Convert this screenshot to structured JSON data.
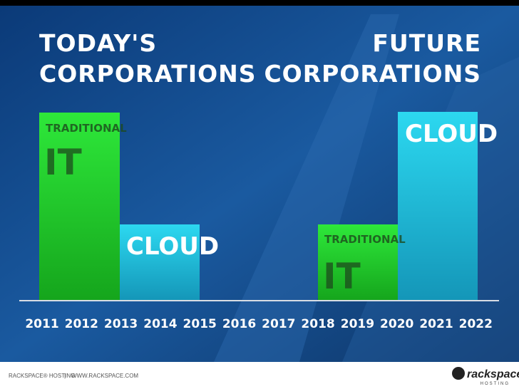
{
  "header": {
    "left": [
      "TODAY'S",
      "CORPORATIONS"
    ],
    "right": [
      "FUTURE",
      "CORPORATIONS"
    ]
  },
  "bars": [
    {
      "small": "TRADITIONAL",
      "big": "IT"
    },
    {
      "big": "CLOUD"
    },
    {
      "small": "TRADITIONAL",
      "big": "IT"
    },
    {
      "big": "CLOUD"
    }
  ],
  "years": [
    "2011",
    "2012",
    "2013",
    "2014",
    "2015",
    "2016",
    "2017",
    "2018",
    "2019",
    "2020",
    "2021",
    "2022"
  ],
  "footer": {
    "left": "RACKSPACE® HOSTING",
    "separator": "|",
    "url": "WWW.RACKSPACE.COM",
    "logo": "rackspace",
    "logo_sub": "HOSTING"
  }
}
